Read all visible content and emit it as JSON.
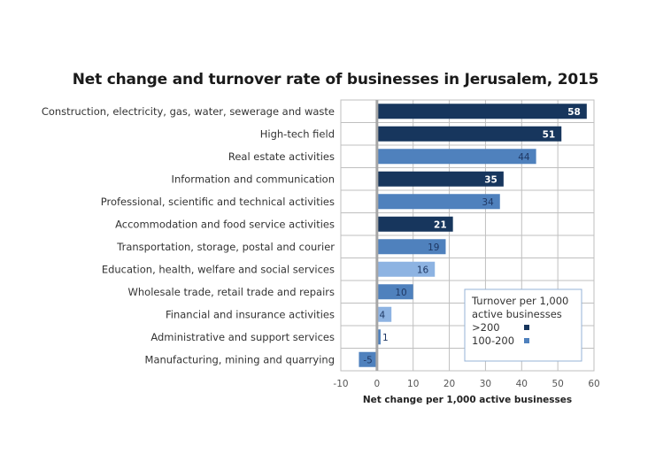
{
  "chart_data": {
    "type": "bar",
    "orientation": "horizontal",
    "title": "Net change and turnover rate of businesses in Jerusalem, 2015",
    "xlabel": "Net change per 1,000 active businesses",
    "ylabel": "",
    "xlim": [
      -10,
      60
    ],
    "xticks": [
      -10,
      0,
      10,
      20,
      30,
      40,
      50,
      60
    ],
    "grid": true,
    "categories": [
      "Construction, electricity, gas, water, sewerage and waste",
      "High-tech field",
      "Real estate activities",
      "Information and communication",
      "Professional, scientific and technical activities",
      "Accommodation and food service activities",
      "Transportation, storage, postal and courier",
      "Education, health, welfare and social services",
      "Wholesale trade, retail trade and repairs",
      "Financial and insurance activities",
      "Administrative and support services",
      "Manufacturing, mining and quarrying"
    ],
    "values": [
      58,
      51,
      44,
      35,
      34,
      21,
      19,
      16,
      10,
      4,
      1,
      -5
    ],
    "turnover_group": [
      ">200",
      ">200",
      "100-200",
      ">200",
      "100-200",
      ">200",
      "100-200",
      "other",
      "100-200",
      "other",
      "100-200",
      "100-200"
    ],
    "legend": {
      "title": "Turnover per 1,000 active businesses",
      "title_lines": [
        "Turnover per 1,000",
        "active businesses"
      ],
      "position": "bottom-right",
      "entries": [
        {
          "label": ">200",
          "color": "#17365d"
        },
        {
          "label": "100-200",
          "color": "#4f81bd"
        }
      ]
    },
    "colors": {
      ">200": "#17365d",
      "100-200": "#4f81bd",
      "other": "#8db3e2",
      "zero_axis": "#a6a6a6",
      "grid": "#bfbfbf"
    }
  }
}
